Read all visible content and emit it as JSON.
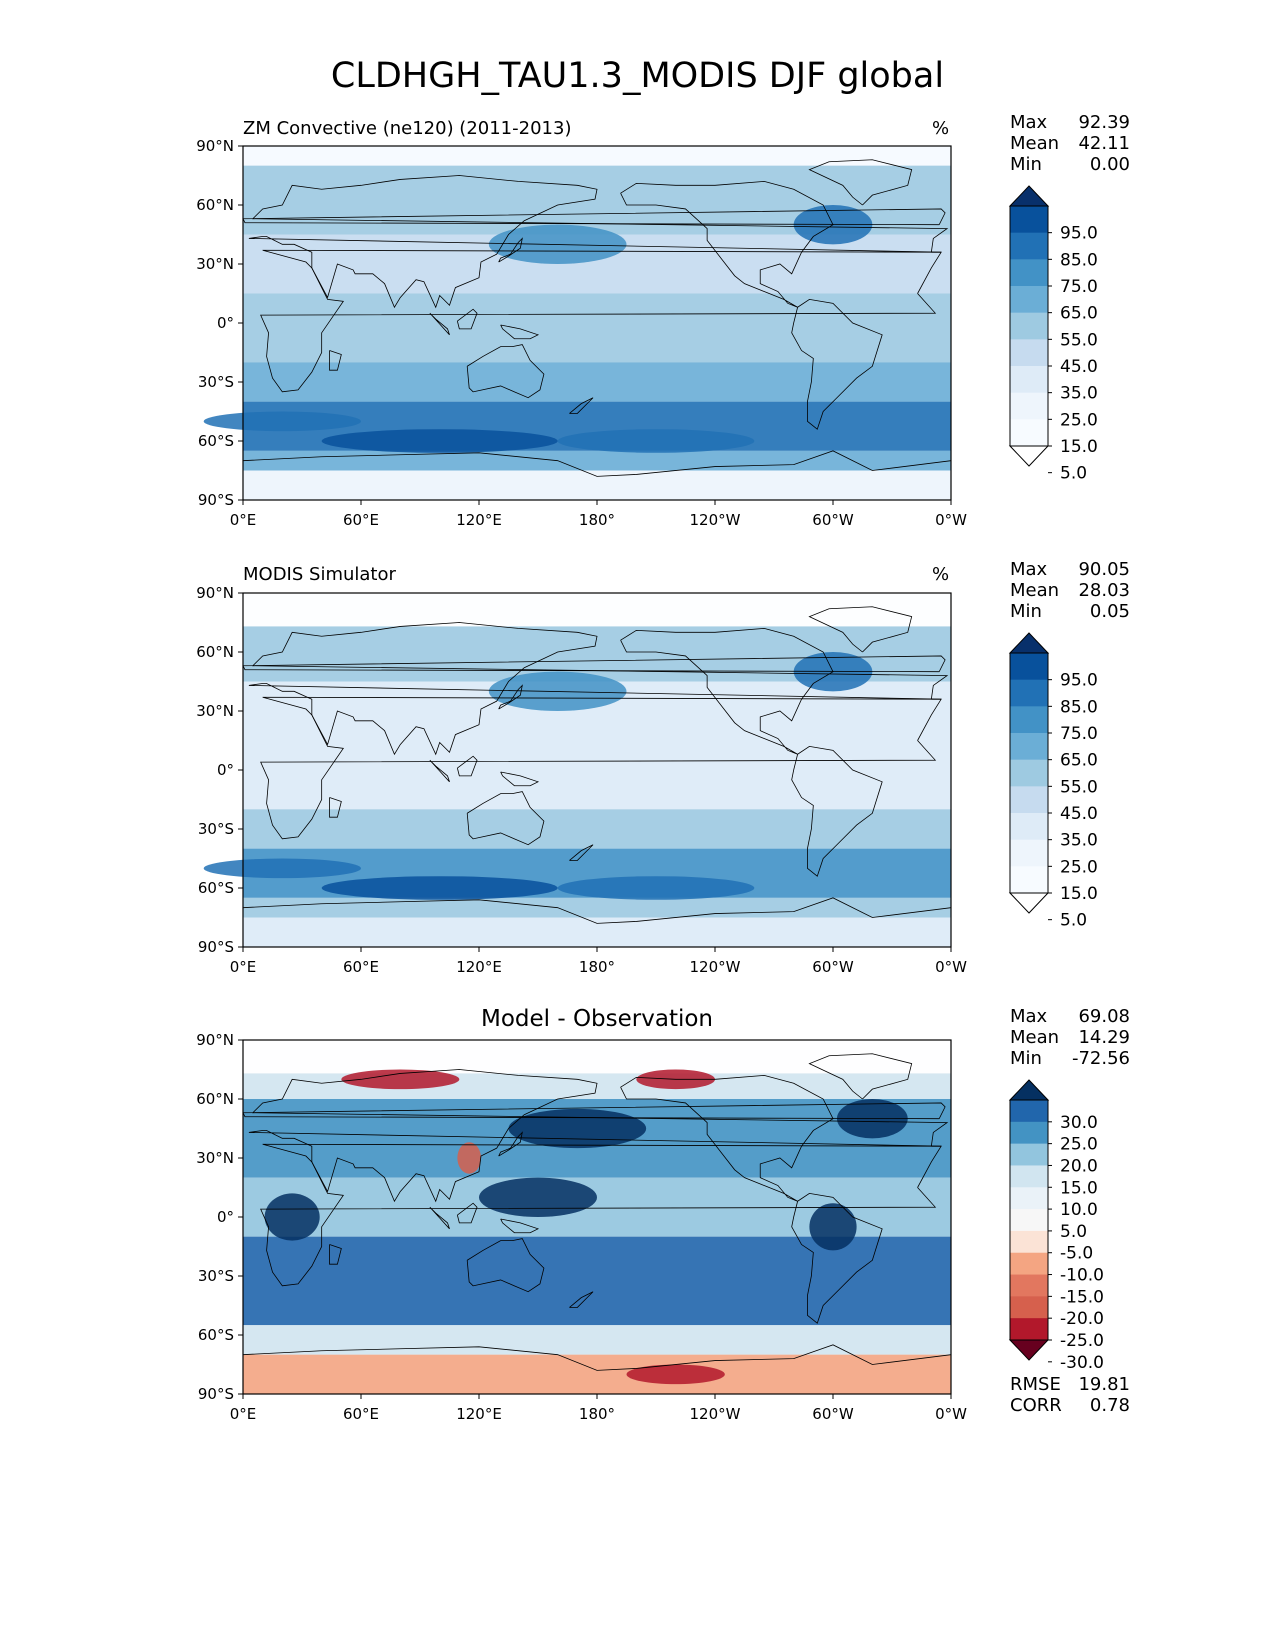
{
  "title": "CLDHGH_TAU1.3_MODIS DJF global",
  "panels": [
    {
      "title": "ZM Convective (ne120) (2011-2013)",
      "units": "%",
      "stats": {
        "max": "92.39",
        "mean": "42.11",
        "min": "0.00"
      },
      "colorbar": {
        "labels": [
          "95.0",
          "85.0",
          "75.0",
          "65.0",
          "55.0",
          "45.0",
          "35.0",
          "25.0",
          "15.0",
          "5.0"
        ],
        "colors": [
          "#08306b",
          "#08519c",
          "#2171b5",
          "#4292c6",
          "#6baed6",
          "#9ecae1",
          "#c6dbef",
          "#deebf7",
          "#eef5fc",
          "#f7fbff",
          "#ffffff"
        ]
      }
    },
    {
      "title": "MODIS Simulator",
      "units": "%",
      "stats": {
        "max": "90.05",
        "mean": "28.03",
        "min": "0.05"
      },
      "colorbar": {
        "labels": [
          "95.0",
          "85.0",
          "75.0",
          "65.0",
          "55.0",
          "45.0",
          "35.0",
          "25.0",
          "15.0",
          "5.0"
        ],
        "colors": [
          "#08306b",
          "#08519c",
          "#2171b5",
          "#4292c6",
          "#6baed6",
          "#9ecae1",
          "#c6dbef",
          "#deebf7",
          "#eef5fc",
          "#f7fbff",
          "#ffffff"
        ]
      }
    },
    {
      "title": "Model - Observation",
      "stats": {
        "max": "69.08",
        "mean": "14.29",
        "min": "-72.56"
      },
      "rmse": "19.81",
      "corr": "0.78",
      "colorbar": {
        "labels": [
          "30.0",
          "25.0",
          "20.0",
          "15.0",
          "10.0",
          "5.0",
          "-5.0",
          "-10.0",
          "-15.0",
          "-20.0",
          "-25.0",
          "-30.0"
        ],
        "colors": [
          "#053061",
          "#2166ac",
          "#4393c3",
          "#92c5de",
          "#d1e5f0",
          "#eaf2f8",
          "#f7f7f7",
          "#fbe3d6",
          "#f4a582",
          "#e2775f",
          "#d6604d",
          "#b2182b",
          "#67001f"
        ]
      }
    }
  ],
  "axes": {
    "lat_labels": [
      "90°N",
      "60°N",
      "30°N",
      "0°",
      "30°S",
      "60°S",
      "90°S"
    ],
    "lon_labels": [
      "0°E",
      "60°E",
      "120°E",
      "180°",
      "120°W",
      "60°W",
      "0°W"
    ]
  },
  "stat_labels": {
    "max": "Max",
    "mean": "Mean",
    "min": "Min",
    "rmse": "RMSE",
    "corr": "CORR"
  }
}
